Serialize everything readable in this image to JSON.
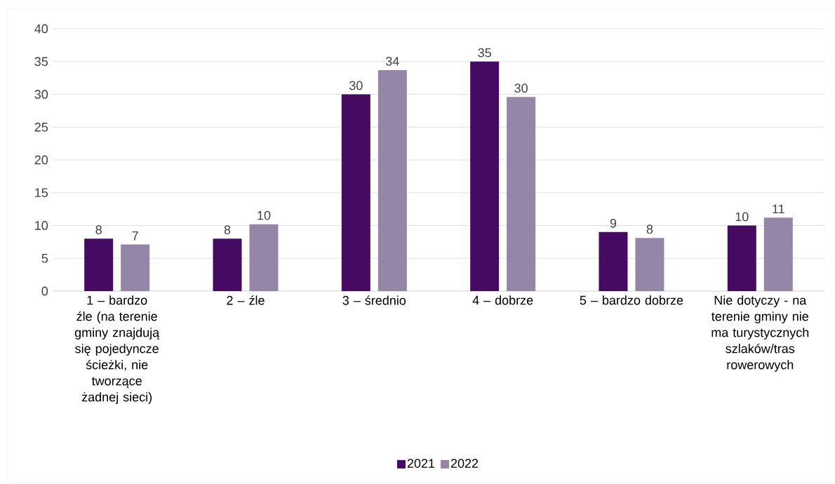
{
  "chart_data": {
    "type": "bar",
    "categories": [
      "1 – bardzo źle (na terenie gminy znajdują się pojedyncze ścieżki, nie tworzące żadnej sieci)",
      "2 – źle",
      "3 – średnio",
      "4 – dobrze",
      "5 – bardzo dobrze",
      "Nie dotyczy - na terenie gminy nie ma turystycznych szlaków/tras rowerowych"
    ],
    "series": [
      {
        "name": "2021",
        "color": "#470a62",
        "values": [
          8,
          8,
          30,
          35,
          9,
          10
        ],
        "value_labels": [
          "8",
          "8",
          "30",
          "35",
          "9",
          "10"
        ]
      },
      {
        "name": "2022",
        "color": "#9486a6",
        "values": [
          7.1,
          10.2,
          33.7,
          29.6,
          8.1,
          11.2
        ],
        "value_labels": [
          "7",
          "10",
          "34",
          "30",
          "8",
          "11"
        ]
      }
    ],
    "ylim": [
      0,
      40
    ],
    "yticks": [
      0,
      5,
      10,
      15,
      20,
      25,
      30,
      35,
      40
    ],
    "grid": "y",
    "legend": "bottom"
  }
}
